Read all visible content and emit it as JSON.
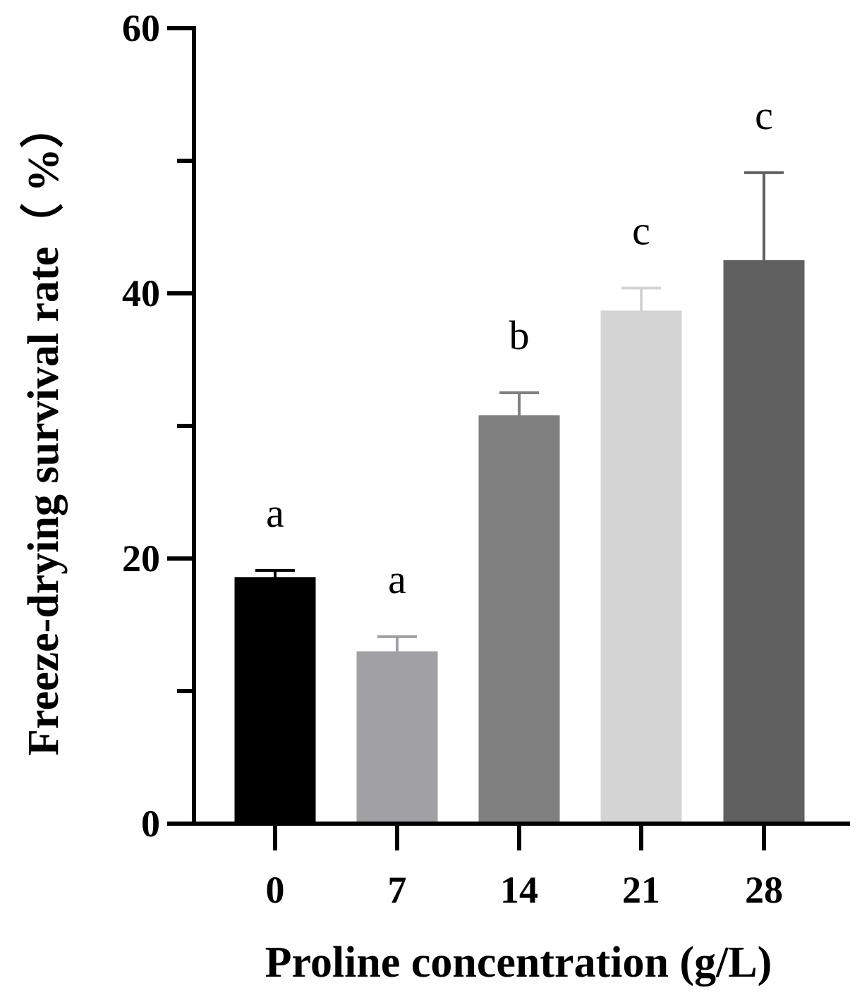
{
  "chart_data": {
    "type": "bar",
    "categories": [
      "0",
      "7",
      "14",
      "21",
      "28"
    ],
    "values": [
      18.6,
      13.0,
      30.8,
      38.7,
      42.5
    ],
    "errors": [
      0.5,
      1.1,
      1.7,
      1.7,
      6.6
    ],
    "significance": [
      "a",
      "a",
      "b",
      "c",
      "c"
    ],
    "colors": [
      "#000000",
      "#a0a0a5",
      "#808080",
      "#d4d4d4",
      "#606060"
    ],
    "xlabel": "Proline concentration (g/L)",
    "ylabel": "Freeze-drying survival rate（ %）",
    "ylim": [
      0,
      60
    ],
    "yticks": [
      0,
      20,
      40,
      60
    ],
    "grid": false
  }
}
